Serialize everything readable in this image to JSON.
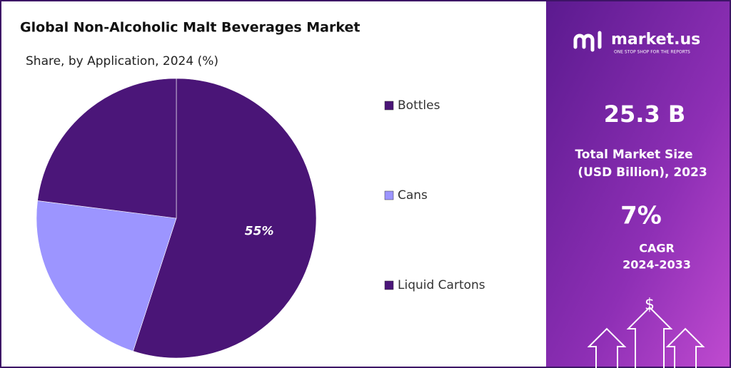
{
  "chart_data": {
    "type": "pie",
    "title": "Global Non-Alcoholic Malt Beverages Market",
    "subtitle": "Share, by Application, 2024 (%)",
    "categories": [
      "Bottles",
      "Cans",
      "Liquid Cartons"
    ],
    "values": [
      55,
      22,
      23
    ],
    "value_labels": [
      "55%",
      null,
      null
    ],
    "colors": [
      "#4a1577",
      "#9c95ff",
      "#4b1679"
    ]
  },
  "sidebar": {
    "brand": "market.us",
    "tagline": "ONE STOP SHOP FOR THE REPORTS",
    "market_size": "25.3 B",
    "market_size_label_1": "Total Market Size",
    "market_size_label_2": "(USD Billion), 2023",
    "cagr": "7%",
    "cagr_label_1": "CAGR",
    "cagr_label_2": "2024-2033",
    "icon_symbol": "$"
  }
}
